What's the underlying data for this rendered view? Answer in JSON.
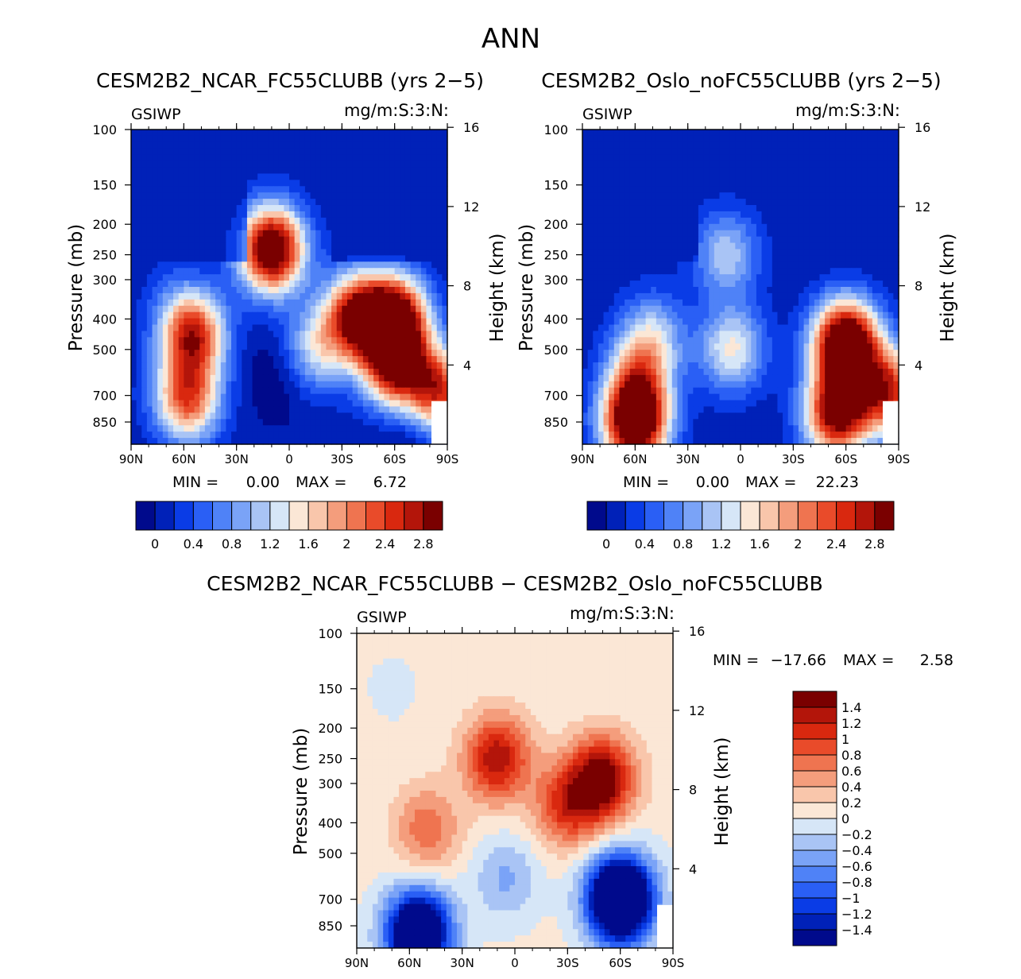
{
  "page_title": "ANN",
  "colors": {
    "cmap": [
      "#000a8c",
      "#0021b8",
      "#0a3ce6",
      "#2a5ff5",
      "#4f82f7",
      "#7aa3f7",
      "#a9c4f5",
      "#d6e6f7",
      "#fbe7d6",
      "#f9c6ab",
      "#f49d7c",
      "#ef7450",
      "#e94b2a",
      "#d9280f",
      "#b3150a",
      "#7a0000"
    ]
  },
  "chart_data": [
    {
      "type": "heatmap",
      "title": "CESM2B2_NCAR_FC55CLUBB (yrs 2−5)",
      "corner_left": "GSIWP",
      "corner_right": "mg/m:S:3:N:",
      "xlabel": "",
      "ylabel": "Pressure (mb)",
      "ylabel_right": "Height (km)",
      "x_ticks": [
        "90N",
        "60N",
        "30N",
        "0",
        "30S",
        "60S",
        "90S"
      ],
      "x_values": [
        90,
        60,
        30,
        0,
        -30,
        -60,
        -90
      ],
      "y_ticks": [
        "100",
        "150",
        "200",
        "250",
        "300",
        "400",
        "500",
        "700",
        "850"
      ],
      "y_values": [
        100,
        150,
        200,
        250,
        300,
        400,
        500,
        700,
        850
      ],
      "height_ticks": [
        "16",
        "12",
        "8",
        "4"
      ],
      "height_values": [
        16,
        12,
        8,
        4
      ],
      "ylim": [
        100,
        1000
      ],
      "min_label": "MIN =",
      "min_value": "0.00",
      "max_label": "MAX =",
      "max_value": "6.72",
      "colorbar_labels": [
        "0",
        "0.4",
        "0.8",
        "1.2",
        "1.6",
        "2",
        "2.4",
        "2.8"
      ],
      "levels": [
        0,
        0.2,
        0.4,
        0.6,
        0.8,
        1.0,
        1.2,
        1.4,
        1.6,
        1.8,
        2.0,
        2.2,
        2.4,
        2.6,
        2.8
      ],
      "blobs": [
        {
          "lat": -70,
          "p": 900,
          "v": -0.3,
          "r": 1.0
        },
        {
          "lat": 5,
          "p": 600,
          "v": -0.3,
          "r": 1.0
        },
        {
          "lat": 65,
          "p": 350,
          "v": 0.25,
          "r": 1.0
        },
        {
          "lat": 55,
          "p": 450,
          "v": 2.5,
          "r": 1.0
        },
        {
          "lat": 58,
          "p": 720,
          "v": 2.2,
          "r": 1.0
        },
        {
          "lat": 10,
          "p": 240,
          "v": 3.4,
          "r": 1.0
        },
        {
          "lat": -38,
          "p": 390,
          "v": 2.6,
          "r": 1.0
        },
        {
          "lat": -60,
          "p": 400,
          "v": 3.2,
          "r": 1.0
        },
        {
          "lat": -60,
          "p": 560,
          "v": 2.6,
          "r": 1.0
        },
        {
          "lat": -85,
          "p": 680,
          "v": 2.4,
          "r": 1.0
        },
        {
          "lat": -15,
          "p": 500,
          "v": 1.2,
          "r": 1.0
        }
      ]
    },
    {
      "type": "heatmap",
      "title": "CESM2B2_Oslo_noFC55CLUBB (yrs 2−5)",
      "corner_left": "GSIWP",
      "corner_right": "mg/m:S:3:N:",
      "xlabel": "",
      "ylabel": "Pressure (mb)",
      "ylabel_right": "Height (km)",
      "x_ticks": [
        "90N",
        "60N",
        "30N",
        "0",
        "30S",
        "60S",
        "90S"
      ],
      "x_values": [
        90,
        60,
        30,
        0,
        -30,
        -60,
        -90
      ],
      "y_ticks": [
        "100",
        "150",
        "200",
        "250",
        "300",
        "400",
        "500",
        "700",
        "850"
      ],
      "y_values": [
        100,
        150,
        200,
        250,
        300,
        400,
        500,
        700,
        850
      ],
      "height_ticks": [
        "16",
        "12",
        "8",
        "4"
      ],
      "height_values": [
        16,
        12,
        8,
        4
      ],
      "ylim": [
        100,
        1000
      ],
      "min_label": "MIN =",
      "min_value": "0.00",
      "max_label": "MAX =",
      "max_value": "22.23",
      "colorbar_labels": [
        "0",
        "0.4",
        "0.8",
        "1.2",
        "1.6",
        "2",
        "2.4",
        "2.8"
      ],
      "levels": [
        0,
        0.2,
        0.4,
        0.6,
        0.8,
        1.0,
        1.2,
        1.4,
        1.6,
        1.8,
        2.0,
        2.2,
        2.4,
        2.6,
        2.8
      ],
      "blobs": [
        {
          "lat": 60,
          "p": 850,
          "v": 3.6,
          "r": 1.0
        },
        {
          "lat": 58,
          "p": 600,
          "v": 1.4,
          "r": 1.0
        },
        {
          "lat": 50,
          "p": 450,
          "v": 1.0,
          "r": 1.0
        },
        {
          "lat": 8,
          "p": 250,
          "v": 1.1,
          "r": 1.0
        },
        {
          "lat": 5,
          "p": 500,
          "v": 1.4,
          "r": 1.0
        },
        {
          "lat": -60,
          "p": 480,
          "v": 3.8,
          "r": 1.0
        },
        {
          "lat": -55,
          "p": 800,
          "v": 3.0,
          "r": 1.0
        },
        {
          "lat": -85,
          "p": 680,
          "v": 2.4,
          "r": 1.0
        }
      ]
    },
    {
      "type": "heatmap",
      "title": "CESM2B2_NCAR_FC55CLUBB − CESM2B2_Oslo_noFC55CLUBB",
      "corner_left": "GSIWP",
      "corner_right": "mg/m:S:3:N:",
      "xlabel": "",
      "ylabel": "Pressure (mb)",
      "ylabel_right": "Height (km)",
      "x_ticks": [
        "90N",
        "60N",
        "30N",
        "0",
        "30S",
        "60S",
        "90S"
      ],
      "x_values": [
        90,
        60,
        30,
        0,
        -30,
        -60,
        -90
      ],
      "y_ticks": [
        "100",
        "150",
        "200",
        "250",
        "300",
        "400",
        "500",
        "700",
        "850"
      ],
      "y_values": [
        100,
        150,
        200,
        250,
        300,
        400,
        500,
        700,
        850
      ],
      "height_ticks": [
        "16",
        "12",
        "8",
        "4"
      ],
      "height_values": [
        16,
        12,
        8,
        4
      ],
      "ylim": [
        100,
        1000
      ],
      "min_label": "MIN =",
      "min_value": "−17.66",
      "max_label": "MAX =",
      "max_value": "2.58",
      "colorbar_labels": [
        "1.4",
        "1.2",
        "1",
        "0.8",
        "0.6",
        "0.4",
        "0.2",
        "0",
        "−0.2",
        "−0.4",
        "−0.6",
        "−0.8",
        "−1",
        "−1.2",
        "−1.4"
      ],
      "levels": [
        -1.4,
        -1.2,
        -1.0,
        -0.8,
        -0.6,
        -0.4,
        -0.2,
        0,
        0.2,
        0.4,
        0.6,
        0.8,
        1.0,
        1.2,
        1.4
      ],
      "blobs": [
        {
          "lat": 10,
          "p": 250,
          "v": 1.3,
          "r": 1.0
        },
        {
          "lat": 50,
          "p": 420,
          "v": 0.7,
          "r": 1.0
        },
        {
          "lat": -30,
          "p": 350,
          "v": 1.0,
          "r": 1.0
        },
        {
          "lat": -50,
          "p": 290,
          "v": 1.5,
          "r": 1.0
        },
        {
          "lat": 55,
          "p": 900,
          "v": -2.5,
          "r": 1.0
        },
        {
          "lat": -60,
          "p": 700,
          "v": -3.0,
          "r": 1.0
        },
        {
          "lat": 5,
          "p": 600,
          "v": -0.5,
          "r": 1.0
        },
        {
          "lat": 70,
          "p": 150,
          "v": -0.1,
          "r": 1.0
        }
      ]
    }
  ]
}
